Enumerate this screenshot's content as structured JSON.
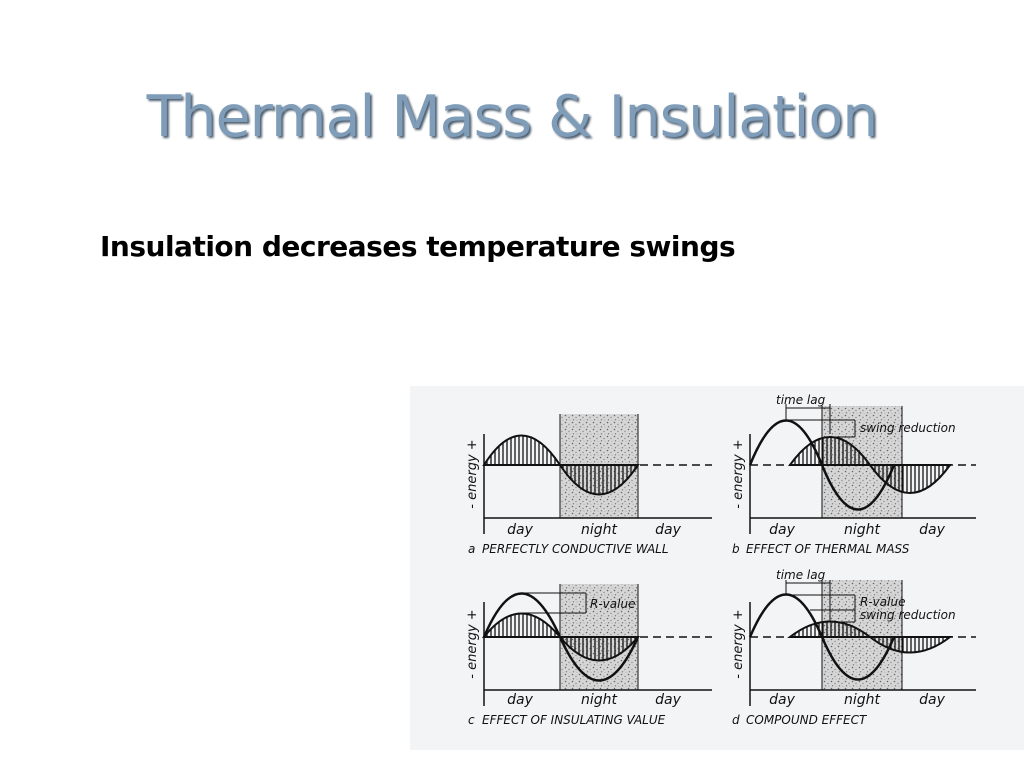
{
  "slide": {
    "title": "Thermal Mass & Insulation",
    "subtitle": "Insulation decreases temperature swings"
  },
  "figure": {
    "energy_axis_label": "- energy +",
    "day_label": "day",
    "night_label": "night",
    "time_lag_label": "time lag",
    "swing_reduction_label": "swing reduction",
    "r_value_label": "R-value",
    "panels": [
      {
        "letter": "a",
        "caption": "PERFECTLY CONDUCTIVE WALL"
      },
      {
        "letter": "b",
        "caption": "EFFECT OF THERMAL MASS"
      },
      {
        "letter": "c",
        "caption": "EFFECT OF INSULATING VALUE"
      },
      {
        "letter": "d",
        "caption": "COMPOUND EFFECT"
      }
    ],
    "colors": {
      "title": "#7f9db9",
      "ink": "#111111",
      "figure_bg": "#f3f4f6"
    }
  }
}
